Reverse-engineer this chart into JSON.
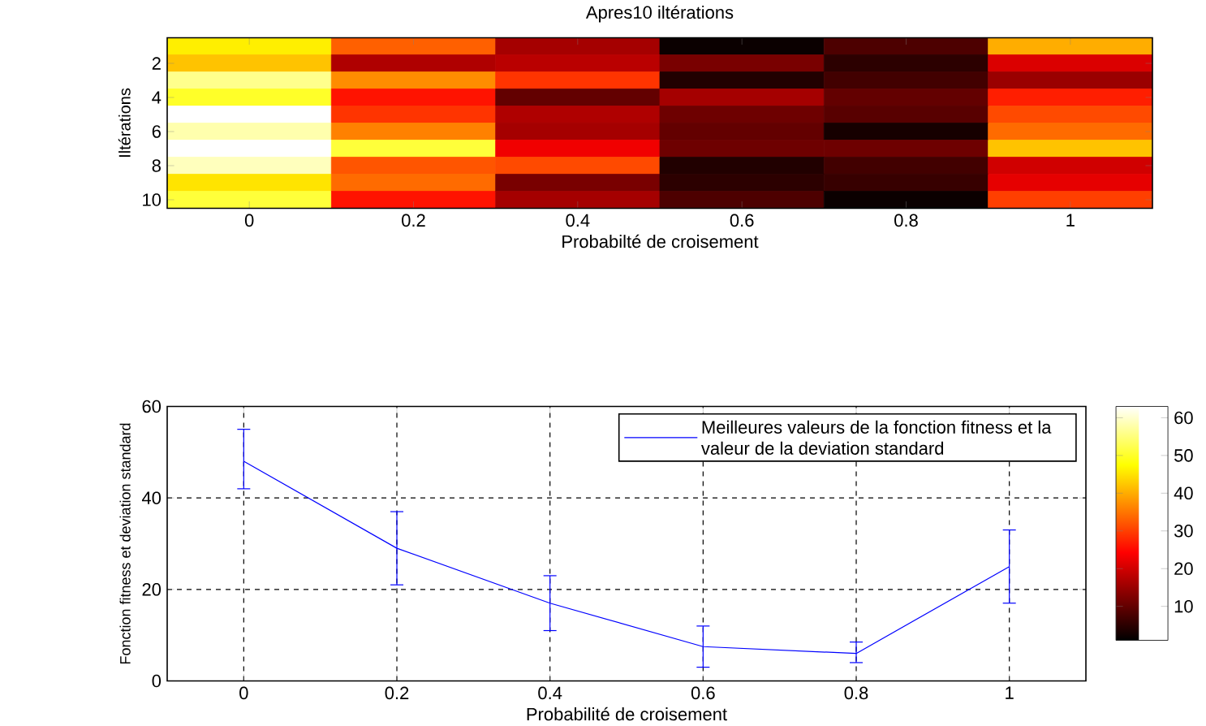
{
  "chart_data": [
    {
      "type": "heatmap",
      "title": "Apres10 iltérations",
      "xlabel": "Probabilté de croisement",
      "ylabel": "Iltérations",
      "categories": [
        "0",
        "0.2",
        "0.4",
        "0.6",
        "0.8",
        "1"
      ],
      "y_categories": [
        null,
        "2",
        null,
        "4",
        null,
        "6",
        null,
        "8",
        null,
        "10"
      ],
      "cells": [
        [
          46,
          33,
          16,
          2,
          8,
          40
        ],
        [
          42,
          17,
          18,
          12,
          5,
          21
        ],
        [
          56,
          37,
          29,
          4,
          7,
          15
        ],
        [
          50,
          26,
          10,
          16,
          10,
          27
        ],
        [
          63,
          29,
          17,
          11,
          9,
          31
        ],
        [
          58,
          36,
          16,
          10,
          3,
          34
        ],
        [
          63,
          51,
          23,
          11,
          11,
          42
        ],
        [
          59,
          32,
          31,
          4,
          7,
          20
        ],
        [
          45,
          34,
          12,
          5,
          6,
          22
        ],
        [
          51,
          26,
          16,
          8,
          2,
          30
        ]
      ],
      "clim": [
        1,
        63
      ],
      "cticks": [
        10,
        20,
        30,
        40,
        50,
        60
      ]
    },
    {
      "type": "line",
      "xlabel": "Probabilité de croisement",
      "ylabel": "Fonction fitness et deviation standard",
      "x": [
        0,
        0.2,
        0.4,
        0.6,
        0.8,
        1
      ],
      "xlim": [
        -0.1,
        1.1
      ],
      "xticks": [
        0,
        0.2,
        0.4,
        0.6,
        0.8,
        1
      ],
      "ylim": [
        0,
        60
      ],
      "yticks": [
        0,
        20,
        40,
        60
      ],
      "series": [
        {
          "name": "Meilleures valeurs de la fonction fitness et la valeur de la deviation standard",
          "color": "#0000ff",
          "values": [
            48,
            29,
            17,
            7.5,
            6,
            25
          ],
          "errors": [
            [
              42,
              55
            ],
            [
              21,
              37
            ],
            [
              11,
              23
            ],
            [
              3,
              12
            ],
            [
              4,
              8.5
            ],
            [
              17,
              33
            ]
          ]
        }
      ],
      "grid": true,
      "legend": "top right",
      "line_style": "solid"
    }
  ]
}
